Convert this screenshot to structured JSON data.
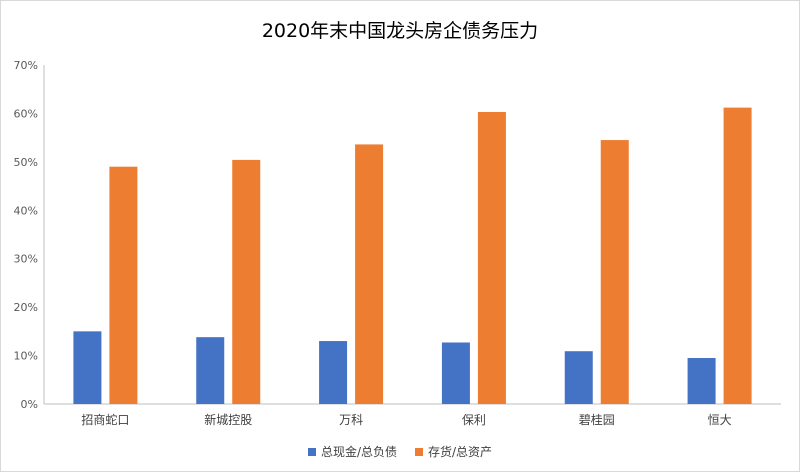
{
  "chart_data": {
    "type": "bar",
    "title": "2020年末中国龙头房企债务压力",
    "categories": [
      "招商蛇口",
      "新城控股",
      "万科",
      "保利",
      "碧桂园",
      "恒大"
    ],
    "series": [
      {
        "name": "总现金/总负债",
        "color": "#4472c4",
        "values": [
          15.0,
          13.8,
          13.0,
          12.7,
          10.9,
          9.5
        ]
      },
      {
        "name": "存货/总资产",
        "color": "#ed7d31",
        "values": [
          49.0,
          50.4,
          53.6,
          60.3,
          54.5,
          61.2
        ]
      }
    ],
    "ylim": [
      0,
      70
    ],
    "yticks": [
      "0%",
      "10%",
      "20%",
      "30%",
      "40%",
      "50%",
      "60%",
      "70%"
    ],
    "grid": false,
    "legend_position": "bottom"
  }
}
